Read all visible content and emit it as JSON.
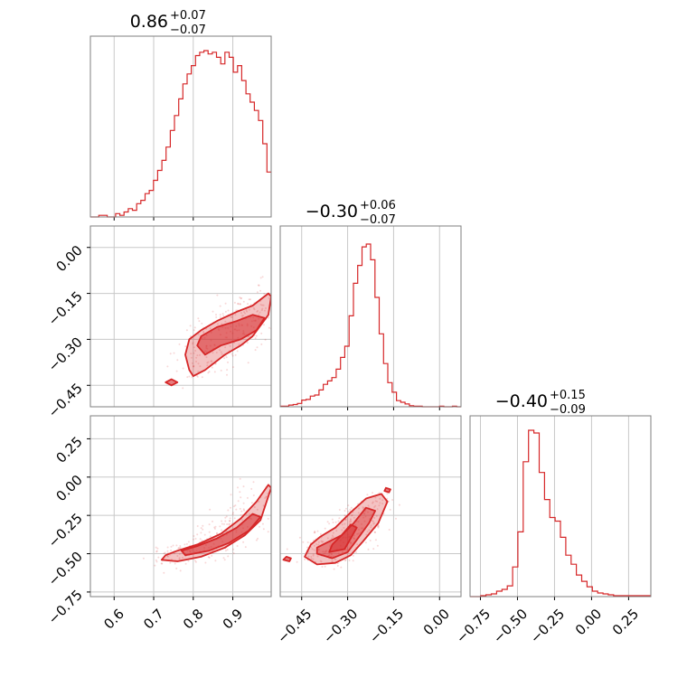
{
  "chart_data": {
    "type": "corner",
    "color": "#d62728",
    "grid": true,
    "parameters": [
      {
        "median": "0.86",
        "err_plus": "+0.07",
        "err_minus": "−0.07",
        "range": [
          0.54,
          0.997
        ],
        "ticks": [
          {
            "value": 0.6,
            "label": "0.6"
          },
          {
            "value": 0.7,
            "label": "0.7"
          },
          {
            "value": 0.8,
            "label": "0.8"
          },
          {
            "value": 0.9,
            "label": "0.9"
          }
        ],
        "hist": {
          "min": 0.54,
          "max": 0.997,
          "counts": [
            0,
            0,
            1,
            1,
            0,
            0,
            2,
            1,
            3,
            5,
            4,
            8,
            10,
            14,
            16,
            22,
            28,
            34,
            42,
            52,
            61,
            71,
            80,
            86,
            91,
            97,
            99,
            100,
            98,
            99,
            96,
            92,
            99,
            96,
            87,
            91,
            82,
            74,
            69,
            64,
            58,
            44,
            27
          ]
        },
        "peak_fraction": 0.92
      },
      {
        "median": "−0.30",
        "err_plus": "+0.06",
        "err_minus": "−0.07",
        "range": [
          -0.52,
          0.07
        ],
        "ticks": [
          {
            "value": -0.45,
            "label": "−0.45"
          },
          {
            "value": -0.3,
            "label": "−0.30"
          },
          {
            "value": -0.15,
            "label": "−0.15"
          },
          {
            "value": 0.0,
            "label": "0.00"
          }
        ],
        "hist": {
          "min": -0.52,
          "max": 0.07,
          "counts": [
            1,
            1,
            3,
            4,
            6,
            12,
            13,
            19,
            21,
            30,
            40,
            46,
            52,
            67,
            88,
            108,
            162,
            220,
            252,
            285,
            290,
            262,
            195,
            130,
            77,
            43,
            26,
            11,
            8,
            5,
            2,
            1,
            1,
            0,
            0,
            0,
            0,
            1,
            0,
            0,
            1,
            0
          ]
        },
        "peak_fraction": 0.9
      },
      {
        "median": "−0.40",
        "err_plus": "+0.15",
        "err_minus": "−0.09",
        "range": [
          -0.82,
          0.4
        ],
        "ticks": [
          {
            "value": -0.75,
            "label": "−0.75"
          },
          {
            "value": -0.5,
            "label": "−0.50"
          },
          {
            "value": -0.25,
            "label": "−0.25"
          },
          {
            "value": 0.0,
            "label": "0.00"
          },
          {
            "value": 0.25,
            "label": "0.25"
          }
        ],
        "hist": {
          "min": -0.82,
          "max": 0.4,
          "counts": [
            0,
            0,
            1,
            2,
            3,
            6,
            8,
            12,
            33,
            72,
            150,
            185,
            182,
            138,
            108,
            88,
            84,
            66,
            46,
            36,
            24,
            17,
            11,
            6,
            4,
            3,
            2,
            1,
            1,
            1,
            1,
            1,
            1,
            1
          ]
        },
        "peak_fraction": 0.92
      }
    ],
    "pairs": [
      {
        "x_param": 0,
        "y_param": 1,
        "contours": [
          {
            "level": "outer",
            "points": [
              [
                0.79,
                -0.4
              ],
              [
                0.8,
                -0.42
              ],
              [
                0.83,
                -0.4
              ],
              [
                0.88,
                -0.35
              ],
              [
                0.92,
                -0.32
              ],
              [
                0.95,
                -0.29
              ],
              [
                0.99,
                -0.22
              ],
              [
                0.997,
                -0.16
              ],
              [
                0.99,
                -0.15
              ],
              [
                0.95,
                -0.19
              ],
              [
                0.91,
                -0.21
              ],
              [
                0.86,
                -0.24
              ],
              [
                0.82,
                -0.27
              ],
              [
                0.79,
                -0.3
              ],
              [
                0.78,
                -0.35
              ]
            ]
          },
          {
            "level": "inner",
            "points": [
              [
                0.83,
                -0.35
              ],
              [
                0.87,
                -0.32
              ],
              [
                0.92,
                -0.3
              ],
              [
                0.96,
                -0.27
              ],
              [
                0.98,
                -0.23
              ],
              [
                0.95,
                -0.22
              ],
              [
                0.91,
                -0.24
              ],
              [
                0.86,
                -0.26
              ],
              [
                0.82,
                -0.29
              ],
              [
                0.81,
                -0.32
              ]
            ]
          },
          {
            "level": "island",
            "points": [
              [
                0.73,
                -0.44
              ],
              [
                0.745,
                -0.45
              ],
              [
                0.76,
                -0.44
              ],
              [
                0.745,
                -0.43
              ]
            ]
          }
        ],
        "scatter": {
          "seed": 11,
          "count": 260,
          "spread": [
            0.06,
            0.06
          ]
        }
      },
      {
        "x_param": 0,
        "y_param": 2,
        "contours": [
          {
            "level": "outer",
            "points": [
              [
                0.72,
                -0.54
              ],
              [
                0.76,
                -0.55
              ],
              [
                0.82,
                -0.52
              ],
              [
                0.88,
                -0.46
              ],
              [
                0.93,
                -0.38
              ],
              [
                0.97,
                -0.28
              ],
              [
                0.997,
                -0.07
              ],
              [
                0.99,
                -0.05
              ],
              [
                0.96,
                -0.16
              ],
              [
                0.92,
                -0.27
              ],
              [
                0.87,
                -0.37
              ],
              [
                0.81,
                -0.44
              ],
              [
                0.76,
                -0.48
              ],
              [
                0.73,
                -0.51
              ]
            ]
          },
          {
            "level": "inner",
            "points": [
              [
                0.78,
                -0.51
              ],
              [
                0.84,
                -0.48
              ],
              [
                0.89,
                -0.43
              ],
              [
                0.94,
                -0.35
              ],
              [
                0.97,
                -0.26
              ],
              [
                0.95,
                -0.24
              ],
              [
                0.91,
                -0.33
              ],
              [
                0.86,
                -0.4
              ],
              [
                0.81,
                -0.45
              ],
              [
                0.77,
                -0.48
              ]
            ]
          }
        ],
        "scatter": {
          "seed": 23,
          "count": 240,
          "spread": [
            0.07,
            0.08
          ]
        }
      },
      {
        "x_param": 1,
        "y_param": 2,
        "contours": [
          {
            "level": "outer",
            "points": [
              [
                -0.44,
                -0.52
              ],
              [
                -0.4,
                -0.57
              ],
              [
                -0.34,
                -0.56
              ],
              [
                -0.29,
                -0.51
              ],
              [
                -0.25,
                -0.42
              ],
              [
                -0.2,
                -0.3
              ],
              [
                -0.17,
                -0.16
              ],
              [
                -0.19,
                -0.11
              ],
              [
                -0.24,
                -0.14
              ],
              [
                -0.29,
                -0.23
              ],
              [
                -0.34,
                -0.33
              ],
              [
                -0.39,
                -0.39
              ],
              [
                -0.42,
                -0.44
              ]
            ]
          },
          {
            "level": "mid",
            "points": [
              [
                -0.4,
                -0.5
              ],
              [
                -0.35,
                -0.53
              ],
              [
                -0.3,
                -0.49
              ],
              [
                -0.27,
                -0.41
              ],
              [
                -0.23,
                -0.3
              ],
              [
                -0.21,
                -0.22
              ],
              [
                -0.24,
                -0.2
              ],
              [
                -0.28,
                -0.3
              ],
              [
                -0.32,
                -0.38
              ],
              [
                -0.37,
                -0.43
              ],
              [
                -0.4,
                -0.46
              ]
            ]
          },
          {
            "level": "inner",
            "points": [
              [
                -0.36,
                -0.49
              ],
              [
                -0.31,
                -0.47
              ],
              [
                -0.29,
                -0.4
              ],
              [
                -0.27,
                -0.33
              ],
              [
                -0.29,
                -0.31
              ],
              [
                -0.32,
                -0.38
              ],
              [
                -0.35,
                -0.44
              ]
            ]
          },
          {
            "level": "island",
            "points": [
              [
                -0.51,
                -0.54
              ],
              [
                -0.49,
                -0.55
              ],
              [
                -0.485,
                -0.53
              ],
              [
                -0.5,
                -0.52
              ]
            ]
          },
          {
            "level": "island",
            "points": [
              [
                -0.18,
                -0.09
              ],
              [
                -0.165,
                -0.1
              ],
              [
                -0.16,
                -0.08
              ],
              [
                -0.175,
                -0.07
              ]
            ]
          }
        ],
        "scatter": {
          "seed": 37,
          "count": 260,
          "spread": [
            0.06,
            0.08
          ]
        }
      }
    ],
    "pair_y_ticks": [
      {
        "y_param": 1,
        "ticks": [
          {
            "value": 0.0,
            "label": "0.00"
          },
          {
            "value": -0.15,
            "label": "−0.15"
          },
          {
            "value": -0.3,
            "label": "−0.30"
          },
          {
            "value": -0.45,
            "label": "−0.45"
          }
        ]
      },
      {
        "y_param": 2,
        "ticks": [
          {
            "value": 0.25,
            "label": "0.25"
          },
          {
            "value": 0.0,
            "label": "0.00"
          },
          {
            "value": -0.25,
            "label": "−0.25"
          },
          {
            "value": -0.5,
            "label": "−0.50"
          },
          {
            "value": -0.75,
            "label": "−0.75"
          }
        ]
      }
    ],
    "pair_y_ranges": [
      {
        "y_param": 1,
        "range": [
          -0.52,
          0.07
        ]
      },
      {
        "y_param": 2,
        "range": [
          -0.78,
          0.4
        ]
      }
    ]
  }
}
